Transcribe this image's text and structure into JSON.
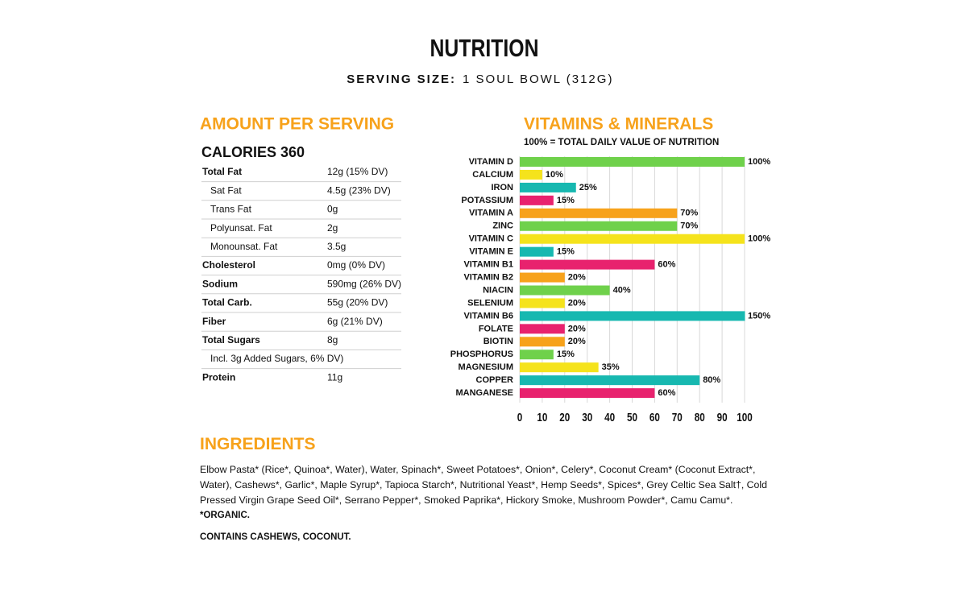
{
  "header": {
    "title": "NUTRITION",
    "serving_label": "SERVING SIZE:",
    "serving_value": "1 SOUL BOWL (312G)"
  },
  "amount": {
    "title": "AMOUNT PER SERVING",
    "calories": "CALORIES 360",
    "rows": [
      {
        "label": "Total Fat",
        "value": "12g (15% DV)"
      },
      {
        "label": "Sat Fat",
        "value": "4.5g (23% DV)",
        "sub": true
      },
      {
        "label": "Trans Fat",
        "value": "0g",
        "sub": true
      },
      {
        "label": "Polyunsat. Fat",
        "value": "2g",
        "sub": true
      },
      {
        "label": "Monounsat. Fat",
        "value": "3.5g",
        "sub": true
      },
      {
        "label": "Cholesterol",
        "value": "0mg (0% DV)"
      },
      {
        "label": "Sodium",
        "value": "590mg (26% DV)"
      },
      {
        "label": "Total Carb.",
        "value": "55g (20% DV)"
      },
      {
        "label": "Fiber",
        "value": "6g (21% DV)"
      },
      {
        "label": "Total Sugars",
        "value": "8g"
      },
      {
        "label": "Incl. 3g Added Sugars, 6% DV)",
        "sub": true
      },
      {
        "label": "Protein",
        "value": "11g"
      }
    ]
  },
  "chart_data": {
    "type": "hbar",
    "title": "VITAMINS & MINERALS",
    "subtitle": "100% = TOTAL DAILY VALUE OF NUTRITION",
    "categories": [
      "VITAMIN D",
      "CALCIUM",
      "IRON",
      "POTASSIUM",
      "VITAMIN A",
      "ZINC",
      "VITAMIN C",
      "VITAMIN E",
      "VITAMIN B1",
      "VITAMIN B2",
      "NIACIN",
      "SELENIUM",
      "VITAMIN B6",
      "FOLATE",
      "BIOTIN",
      "PHOSPHORUS",
      "MAGNESIUM",
      "COPPER",
      "MANGANESE"
    ],
    "values": [
      100,
      10,
      25,
      15,
      70,
      70,
      100,
      15,
      60,
      20,
      40,
      20,
      150,
      20,
      20,
      15,
      35,
      80,
      60
    ],
    "value_labels": [
      "100%",
      "10%",
      "25%",
      "15%",
      "70%",
      "70%",
      "100%",
      "15%",
      "60%",
      "20%",
      "40%",
      "20%",
      "150%",
      "20%",
      "20%",
      "15%",
      "35%",
      "80%",
      "60%"
    ],
    "colors": [
      "#6fd14b",
      "#f5e31c",
      "#17b8b0",
      "#e8226e",
      "#f7a21b",
      "#6fd14b",
      "#f5e31c",
      "#17b8b0",
      "#e8226e",
      "#f7a21b",
      "#6fd14b",
      "#f5e31c",
      "#17b8b0",
      "#e8226e",
      "#f7a21b",
      "#6fd14b",
      "#f5e31c",
      "#17b8b0",
      "#e8226e"
    ],
    "xlim": [
      0,
      100
    ],
    "xticks": [
      0,
      10,
      20,
      30,
      40,
      50,
      60,
      70,
      80,
      90,
      100
    ],
    "grid": true
  },
  "ingredients": {
    "title": "INGREDIENTS",
    "text": "Elbow Pasta* (Rice*, Quinoa*, Water), Water, Spinach*, Sweet Potatoes*, Onion*, Celery*, Coconut Cream* (Coconut Extract*, Water), Cashews*, Garlic*, Maple Syrup*, Tapioca Starch*, Nutritional Yeast*, Hemp Seeds*, Spices*, Grey Celtic Sea Salt†, Cold Pressed Virgin Grape Seed Oil*, Serrano Pepper*, Smoked Paprika*, Hickory Smoke, Mushroom Powder*, Camu Camu*.",
    "note": "*ORGANIC.",
    "contains": "CONTAINS CASHEWS, COCONUT."
  }
}
